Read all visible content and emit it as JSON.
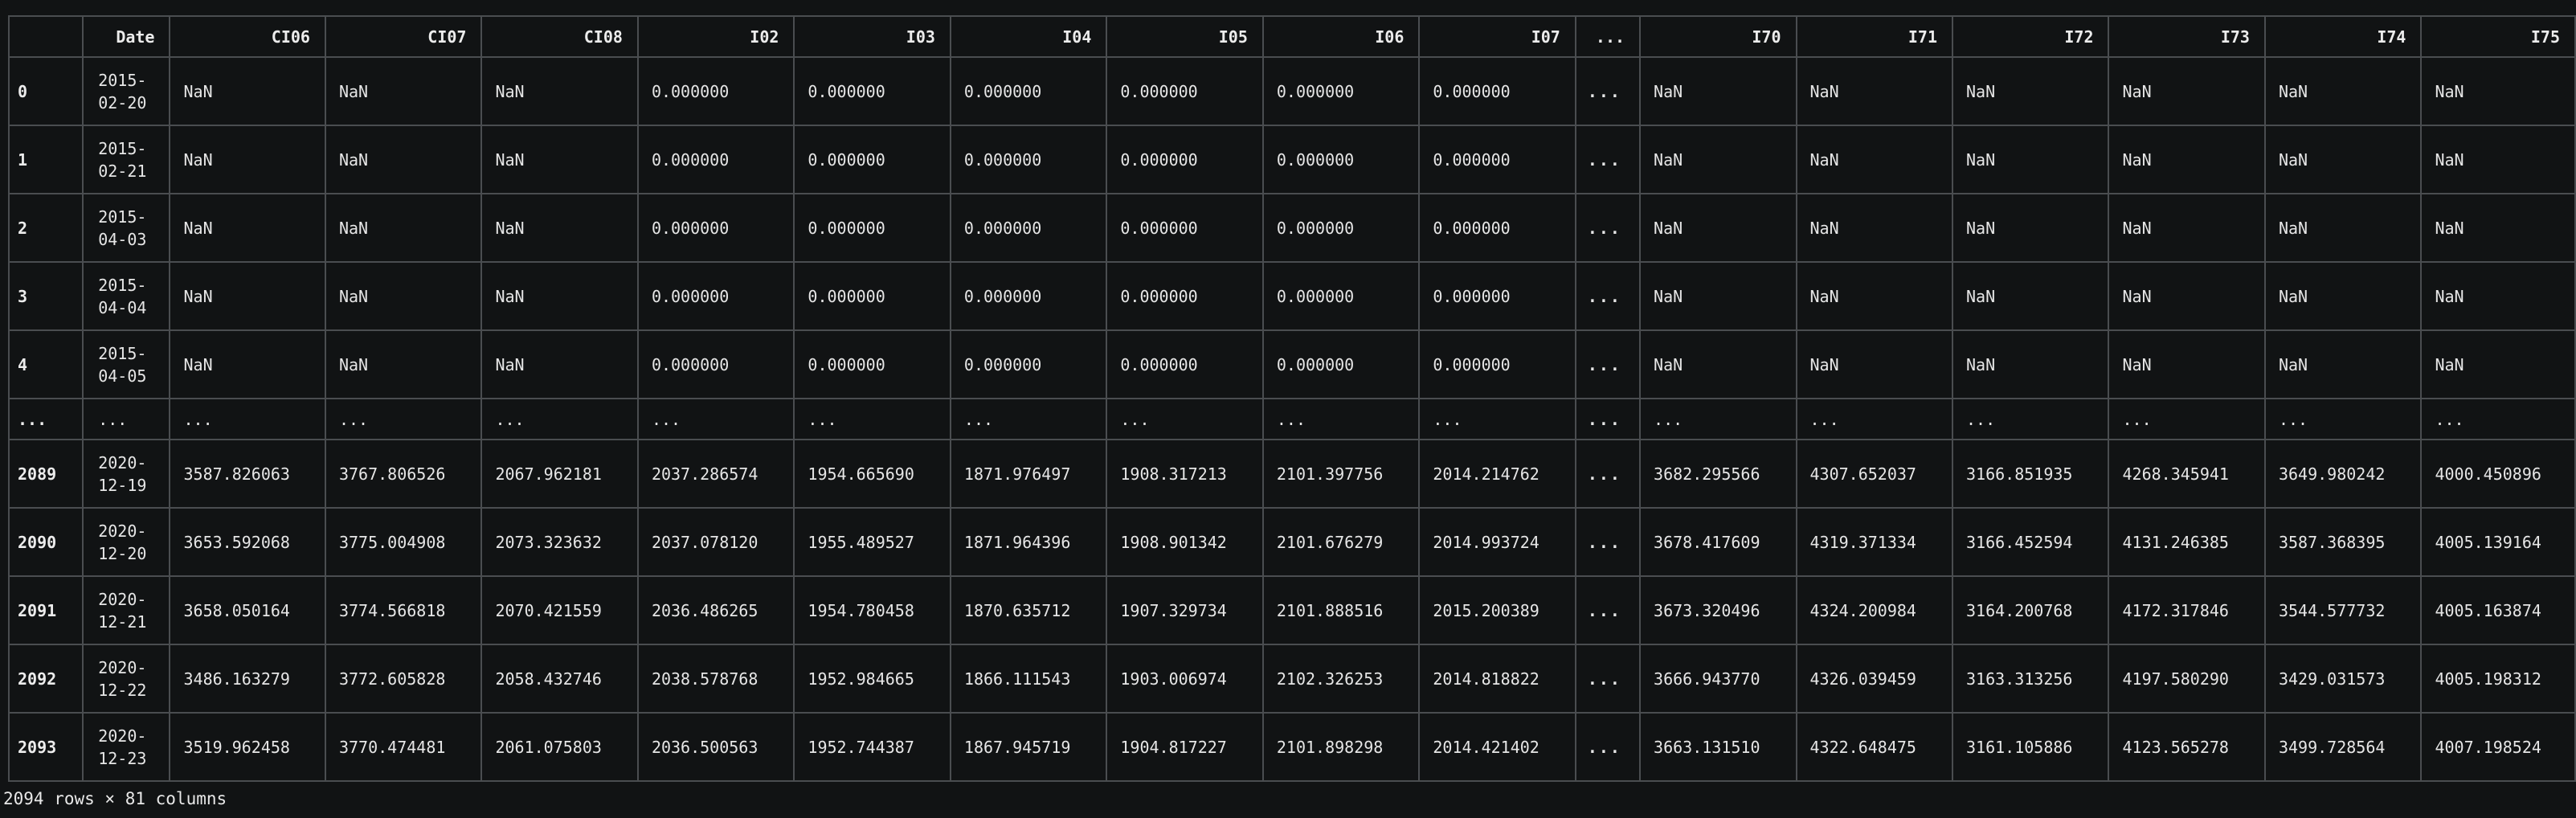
{
  "table": {
    "columns": [
      "",
      "Date",
      "CI06",
      "CI07",
      "CI08",
      "I02",
      "I03",
      "I04",
      "I05",
      "I06",
      "I07",
      "...",
      "I70",
      "I71",
      "I72",
      "I73",
      "I74",
      "I75"
    ],
    "rows": [
      {
        "index": "0",
        "date": [
          "2015-",
          "02-20"
        ],
        "values": [
          "NaN",
          "NaN",
          "NaN",
          "0.000000",
          "0.000000",
          "0.000000",
          "0.000000",
          "0.000000",
          "0.000000",
          "...",
          "NaN",
          "NaN",
          "NaN",
          "NaN",
          "NaN",
          "NaN"
        ]
      },
      {
        "index": "1",
        "date": [
          "2015-",
          "02-21"
        ],
        "values": [
          "NaN",
          "NaN",
          "NaN",
          "0.000000",
          "0.000000",
          "0.000000",
          "0.000000",
          "0.000000",
          "0.000000",
          "...",
          "NaN",
          "NaN",
          "NaN",
          "NaN",
          "NaN",
          "NaN"
        ]
      },
      {
        "index": "2",
        "date": [
          "2015-",
          "04-03"
        ],
        "values": [
          "NaN",
          "NaN",
          "NaN",
          "0.000000",
          "0.000000",
          "0.000000",
          "0.000000",
          "0.000000",
          "0.000000",
          "...",
          "NaN",
          "NaN",
          "NaN",
          "NaN",
          "NaN",
          "NaN"
        ]
      },
      {
        "index": "3",
        "date": [
          "2015-",
          "04-04"
        ],
        "values": [
          "NaN",
          "NaN",
          "NaN",
          "0.000000",
          "0.000000",
          "0.000000",
          "0.000000",
          "0.000000",
          "0.000000",
          "...",
          "NaN",
          "NaN",
          "NaN",
          "NaN",
          "NaN",
          "NaN"
        ]
      },
      {
        "index": "4",
        "date": [
          "2015-",
          "04-05"
        ],
        "values": [
          "NaN",
          "NaN",
          "NaN",
          "0.000000",
          "0.000000",
          "0.000000",
          "0.000000",
          "0.000000",
          "0.000000",
          "...",
          "NaN",
          "NaN",
          "NaN",
          "NaN",
          "NaN",
          "NaN"
        ]
      },
      {
        "index": "...",
        "date": [
          "..."
        ],
        "values": [
          "...",
          "...",
          "...",
          "...",
          "...",
          "...",
          "...",
          "...",
          "...",
          "...",
          "...",
          "...",
          "...",
          "...",
          "...",
          "..."
        ],
        "ellipsis": true
      },
      {
        "index": "2089",
        "date": [
          "2020-",
          "12-19"
        ],
        "values": [
          "3587.826063",
          "3767.806526",
          "2067.962181",
          "2037.286574",
          "1954.665690",
          "1871.976497",
          "1908.317213",
          "2101.397756",
          "2014.214762",
          "...",
          "3682.295566",
          "4307.652037",
          "3166.851935",
          "4268.345941",
          "3649.980242",
          "4000.450896"
        ]
      },
      {
        "index": "2090",
        "date": [
          "2020-",
          "12-20"
        ],
        "values": [
          "3653.592068",
          "3775.004908",
          "2073.323632",
          "2037.078120",
          "1955.489527",
          "1871.964396",
          "1908.901342",
          "2101.676279",
          "2014.993724",
          "...",
          "3678.417609",
          "4319.371334",
          "3166.452594",
          "4131.246385",
          "3587.368395",
          "4005.139164"
        ]
      },
      {
        "index": "2091",
        "date": [
          "2020-",
          "12-21"
        ],
        "values": [
          "3658.050164",
          "3774.566818",
          "2070.421559",
          "2036.486265",
          "1954.780458",
          "1870.635712",
          "1907.329734",
          "2101.888516",
          "2015.200389",
          "...",
          "3673.320496",
          "4324.200984",
          "3164.200768",
          "4172.317846",
          "3544.577732",
          "4005.163874"
        ]
      },
      {
        "index": "2092",
        "date": [
          "2020-",
          "12-22"
        ],
        "values": [
          "3486.163279",
          "3772.605828",
          "2058.432746",
          "2038.578768",
          "1952.984665",
          "1866.111543",
          "1903.006974",
          "2102.326253",
          "2014.818822",
          "...",
          "3666.943770",
          "4326.039459",
          "3163.313256",
          "4197.580290",
          "3429.031573",
          "4005.198312"
        ]
      },
      {
        "index": "2093",
        "date": [
          "2020-",
          "12-23"
        ],
        "values": [
          "3519.962458",
          "3770.474481",
          "2061.075803",
          "2036.500563",
          "1952.744387",
          "1867.945719",
          "1904.817227",
          "2101.898298",
          "2014.421402",
          "...",
          "3663.131510",
          "4322.648475",
          "3161.105886",
          "4123.565278",
          "3499.728564",
          "4007.198524"
        ]
      }
    ]
  },
  "footer": {
    "shape_text": "2094 rows × 81 columns"
  }
}
